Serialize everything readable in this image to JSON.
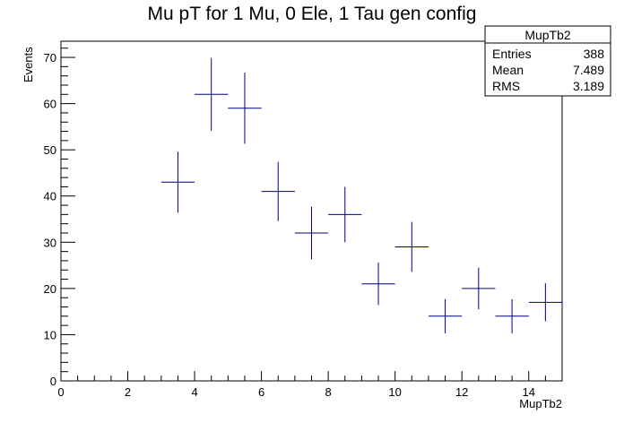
{
  "chart_data": {
    "type": "scatter",
    "title": "Mu pT for 1 Mu, 0 Ele, 1 Tau gen config",
    "xlabel": "MupTb2",
    "ylabel": "Events",
    "xlim": [
      0,
      15
    ],
    "ylim": [
      0,
      73.5
    ],
    "x_ticks": [
      0,
      2,
      4,
      6,
      8,
      10,
      12,
      14
    ],
    "y_ticks": [
      0,
      10,
      20,
      30,
      40,
      50,
      60,
      70
    ],
    "grid": false,
    "points": [
      {
        "x": 3.5,
        "y": 43,
        "xerr": 0.5,
        "yerr_low": 6.6,
        "yerr_high": 6.6
      },
      {
        "x": 4.5,
        "y": 62,
        "xerr": 0.5,
        "yerr_low": 7.9,
        "yerr_high": 7.9
      },
      {
        "x": 5.5,
        "y": 59,
        "xerr": 0.5,
        "yerr_low": 7.7,
        "yerr_high": 7.7
      },
      {
        "x": 6.5,
        "y": 41,
        "xerr": 0.5,
        "yerr_low": 6.4,
        "yerr_high": 6.4
      },
      {
        "x": 7.5,
        "y": 32,
        "xerr": 0.5,
        "yerr_low": 5.7,
        "yerr_high": 5.7
      },
      {
        "x": 8.5,
        "y": 36,
        "xerr": 0.5,
        "yerr_low": 6.0,
        "yerr_high": 6.0
      },
      {
        "x": 9.5,
        "y": 21,
        "xerr": 0.5,
        "yerr_low": 4.6,
        "yerr_high": 4.6
      },
      {
        "x": 10.5,
        "y": 29,
        "xerr": 0.5,
        "yerr_low": 5.4,
        "yerr_high": 5.4
      },
      {
        "x": 11.5,
        "y": 14,
        "xerr": 0.5,
        "yerr_low": 3.7,
        "yerr_high": 3.7
      },
      {
        "x": 12.5,
        "y": 20,
        "xerr": 0.5,
        "yerr_low": 4.5,
        "yerr_high": 4.5
      },
      {
        "x": 13.5,
        "y": 14,
        "xerr": 0.5,
        "yerr_low": 3.7,
        "yerr_high": 3.7
      },
      {
        "x": 14.5,
        "y": 17,
        "xerr": 0.5,
        "yerr_low": 4.1,
        "yerr_high": 4.1
      }
    ],
    "marker_color": "#000080",
    "stats_box": {
      "title": "MupTb2",
      "rows": [
        {
          "label": "Entries",
          "value": "388"
        },
        {
          "label": "Mean",
          "value": "7.489"
        },
        {
          "label": "RMS",
          "value": "3.189"
        }
      ]
    }
  }
}
